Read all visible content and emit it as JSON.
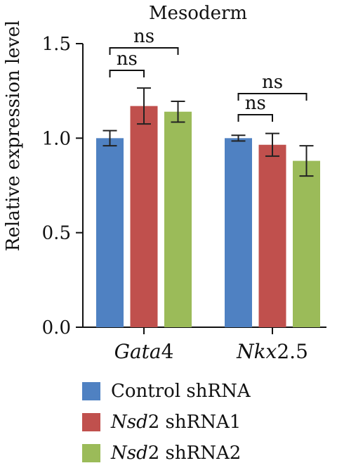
{
  "chart_data": {
    "type": "bar",
    "title": "Mesoderm",
    "xlabel": "",
    "ylabel": "Relative expression level",
    "ylim": [
      0,
      1.5
    ],
    "yticks": [
      "0.0",
      "0.5",
      "1.0",
      "1.5"
    ],
    "categories": [
      {
        "italic": "Gata",
        "plain": "4"
      },
      {
        "italic": "Nkx",
        "plain": "2.5"
      }
    ],
    "series": [
      {
        "name_italic": "",
        "name_plain": "Control shRNA",
        "color": "#4f81c2",
        "values": [
          1.0,
          1.0
        ],
        "errors": [
          0.04,
          0.015
        ]
      },
      {
        "name_italic": "Nsd",
        "name_plain": "2 shRNA1",
        "color": "#c0504d",
        "values": [
          1.17,
          0.965
        ],
        "errors": [
          0.095,
          0.06
        ]
      },
      {
        "name_italic": "Nsd",
        "name_plain": "2 shRNA2",
        "color": "#9bbb59",
        "values": [
          1.14,
          0.88
        ],
        "errors": [
          0.055,
          0.08
        ]
      }
    ],
    "significance": [
      {
        "category": 0,
        "from": 0,
        "to": 1,
        "label": "ns",
        "level": 1
      },
      {
        "category": 0,
        "from": 0,
        "to": 2,
        "label": "ns",
        "level": 2
      },
      {
        "category": 1,
        "from": 0,
        "to": 1,
        "label": "ns",
        "level": 1
      },
      {
        "category": 1,
        "from": 0,
        "to": 2,
        "label": "ns",
        "level": 2
      }
    ],
    "legend_position": "bottom-left",
    "grid": false
  }
}
